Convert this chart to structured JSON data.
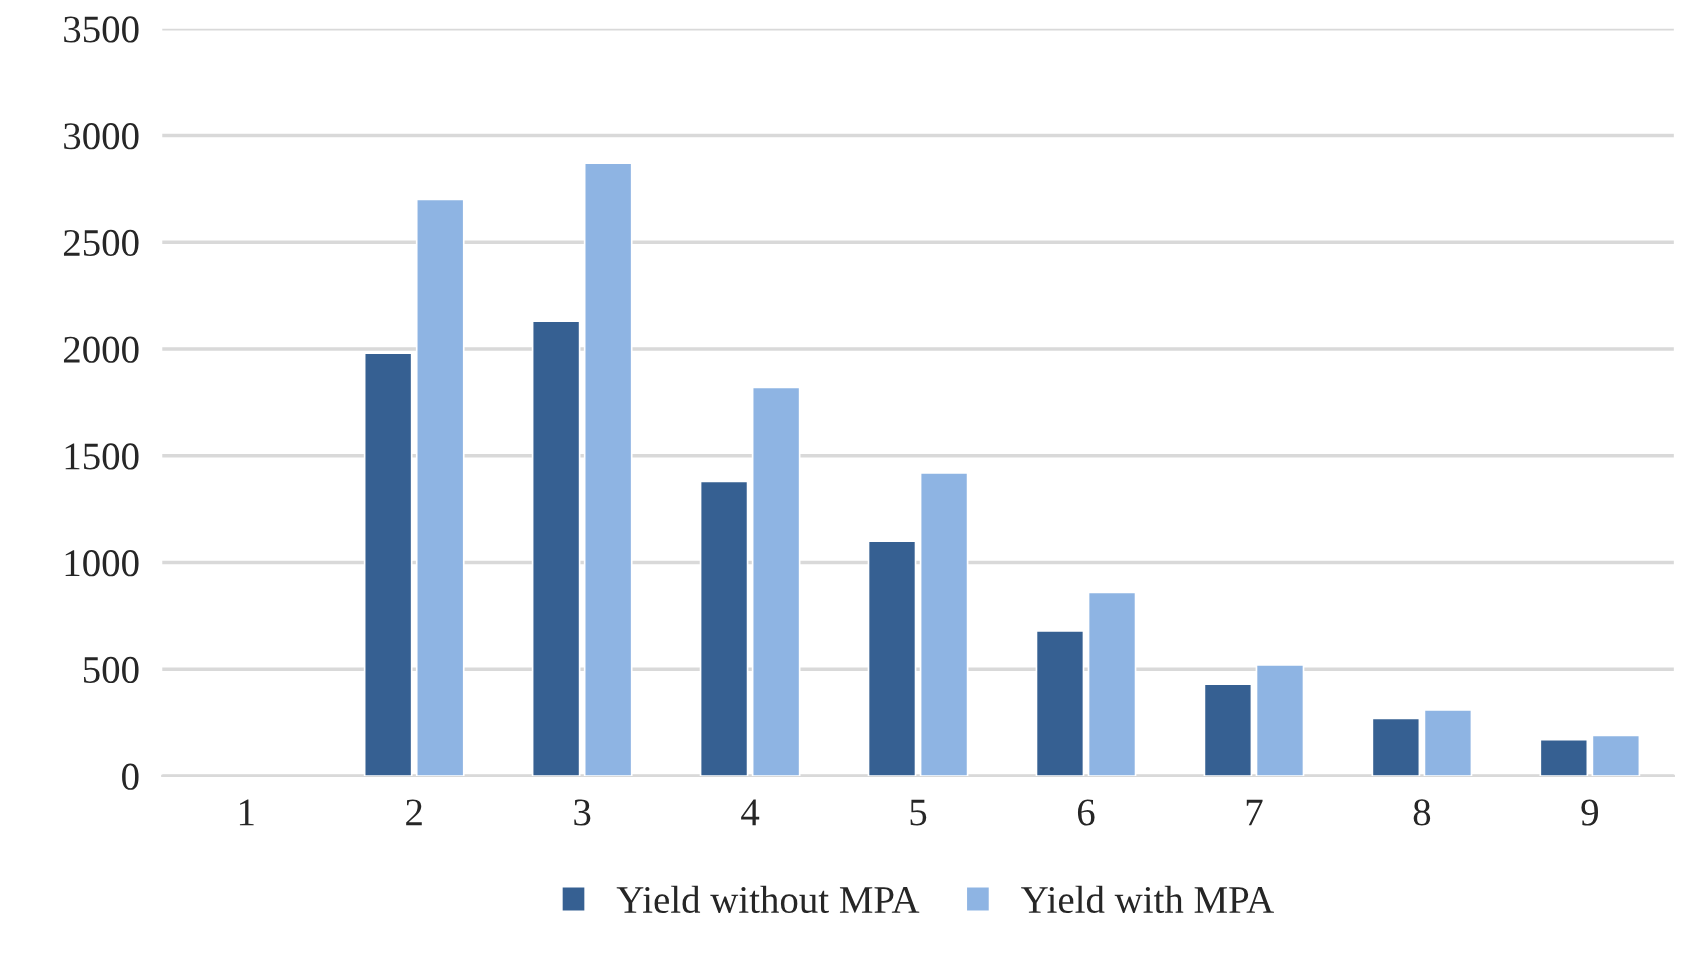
{
  "chart_data": {
    "type": "bar",
    "categories": [
      "1",
      "2",
      "3",
      "4",
      "5",
      "6",
      "7",
      "8",
      "9"
    ],
    "series": [
      {
        "name": "Yield without MPA",
        "color": "#366092",
        "values": [
          null,
          1980,
          2130,
          1380,
          1100,
          680,
          430,
          270,
          170
        ]
      },
      {
        "name": "Yield with MPA",
        "color": "#8eb4e3",
        "values": [
          null,
          2700,
          2870,
          1820,
          1420,
          860,
          520,
          310,
          190
        ]
      }
    ],
    "ylim": [
      0,
      3500
    ],
    "yticks": [
      0,
      500,
      1000,
      1500,
      2000,
      2500,
      3000,
      3500
    ],
    "grid": "y",
    "legend": "bottom"
  }
}
